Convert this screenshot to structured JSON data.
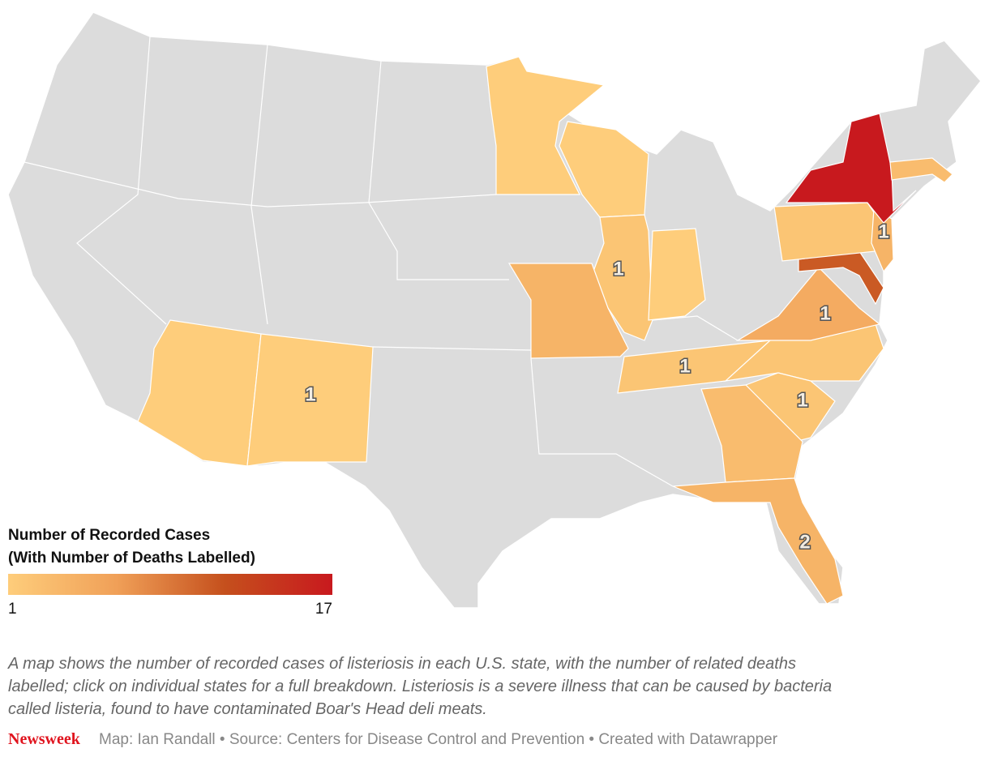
{
  "map": {
    "type": "choropleth",
    "legend": {
      "title_lines": [
        "Number of Recorded Cases",
        "(With Number of Deaths Labelled)"
      ],
      "min": 1,
      "max": 17,
      "colors": [
        "#fecd7b",
        "#f0a058",
        "#c5501d",
        "#c8191e"
      ]
    },
    "states": [
      {
        "cases": 1,
        "deaths": null
      },
      {
        "cases": 1,
        "deaths": null
      },
      {
        "cases": 2,
        "deaths": 1
      },
      {
        "cases": 1,
        "deaths": null
      },
      {
        "cases": 4,
        "deaths": null
      },
      {
        "cases": 2,
        "deaths": 1
      },
      {
        "cases": 2,
        "deaths": null
      },
      {
        "cases": 2,
        "deaths": 1
      },
      {
        "cases": 3,
        "deaths": null
      },
      {
        "cases": 4,
        "deaths": 2
      },
      {
        "cases": 5,
        "deaths": 1
      },
      {
        "cases": 11,
        "deaths": null
      },
      {
        "cases": 2,
        "deaths": null
      },
      {
        "cases": 4,
        "deaths": 1
      },
      {
        "cases": 17,
        "deaths": null
      },
      {
        "cases": 3,
        "deaths": null
      },
      {
        "cases": 1,
        "deaths": null
      },
      {
        "cases": 1,
        "deaths": 1
      }
    ]
  },
  "caption": [
    "A map shows the number of recorded cases of listeriosis in each U.S. state, with the number of related deaths",
    "labelled; click on individual states for a full breakdown. Listeriosis is a severe illness that can be caused by bacteria",
    "called listeria, found to have contaminated Boar's Head deli meats."
  ],
  "footer": {
    "logo": "Newsweek",
    "credit": "Map: Ian Randall • Source: Centers for Disease Control and Prevention • Created with Datawrapper"
  }
}
